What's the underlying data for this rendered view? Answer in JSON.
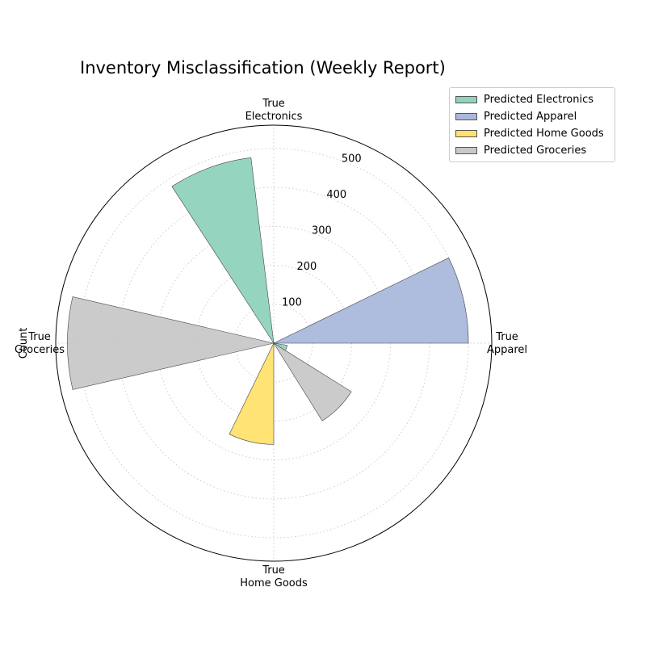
{
  "chart_data": {
    "type": "polar-bar",
    "title": "Inventory Misclassification (Weekly Report)",
    "ylabel": "Count",
    "categories": [
      "True\nElectronics",
      "True\nApparel",
      "True\nHome Goods",
      "True\nGroceries"
    ],
    "radial_ticks": [
      100,
      200,
      300,
      400,
      500
    ],
    "rmax": 560,
    "grid": true,
    "legend_position": "upper-right-outside",
    "series": [
      {
        "name": "Predicted Electronics",
        "color": "#8fd3bd",
        "values": [
          480,
          0,
          0,
          0
        ],
        "extra": [
          {
            "category": "True\nApparel",
            "value": 35,
            "offset_deg": 112
          }
        ]
      },
      {
        "name": "Predicted Apparel",
        "color": "#aab8db",
        "values": [
          0,
          500,
          0,
          0
        ]
      },
      {
        "name": "Predicted Home Goods",
        "color": "#ffe26e",
        "values": [
          0,
          0,
          260,
          0
        ]
      },
      {
        "name": "Predicted Groceries",
        "color": "#c8c8c8",
        "values": [
          0,
          0,
          0,
          530
        ],
        "extra": [
          {
            "category": "True\nApparel",
            "value": 235,
            "offset_deg": 135
          }
        ]
      }
    ]
  }
}
